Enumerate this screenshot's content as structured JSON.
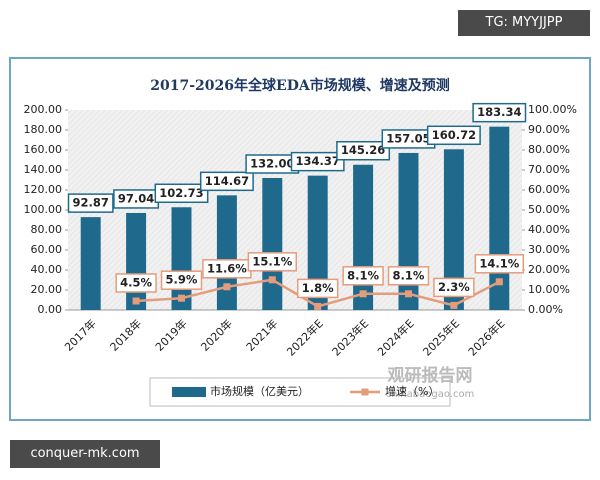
{
  "overlays": {
    "tag": "TG: MYYJJPP",
    "footer": "conquer-mk.com",
    "watermark_name": "观研报告网",
    "watermark_site": "chinabaogao.com"
  },
  "chart_data": {
    "type": "bar",
    "title": "2017-2026年全球EDA市场规模、增速及预测",
    "categories": [
      "2017年",
      "2018年",
      "2019年",
      "2020年",
      "2021年",
      "2022年E",
      "2023年E",
      "2024年E",
      "2025年E",
      "2026年E"
    ],
    "series": [
      {
        "name": "市场规模（亿美元）",
        "color": "#1f6a8c",
        "values": [
          92.87,
          97.04,
          102.73,
          114.67,
          132.0,
          134.37,
          145.26,
          157.05,
          160.72,
          183.34
        ],
        "value_labels": [
          "92.87",
          "97.04",
          "102.73",
          "114.67",
          "132.00",
          "134.37",
          "145.26",
          "157.05",
          "160.72",
          "183.34"
        ]
      },
      {
        "name": "增速（%）",
        "color": "#e59c7c",
        "type": "line",
        "axis": "y2",
        "values": [
          null,
          4.5,
          5.9,
          11.6,
          15.1,
          1.8,
          8.1,
          8.1,
          2.3,
          14.1
        ],
        "value_labels": [
          null,
          "4.5%",
          "5.9%",
          "11.6%",
          "15.1%",
          "1.8%",
          "8.1%",
          "8.1%",
          "2.3%",
          "14.1%"
        ]
      }
    ],
    "ylim": [
      0,
      200
    ],
    "yticks": [
      {
        "value": 0,
        "label": "0.00"
      },
      {
        "value": 20,
        "label": "20.00"
      },
      {
        "value": 40,
        "label": "40.00"
      },
      {
        "value": 60,
        "label": "60.00"
      },
      {
        "value": 80,
        "label": "80.00"
      },
      {
        "value": 100,
        "label": "100.00"
      },
      {
        "value": 120,
        "label": "120.00"
      },
      {
        "value": 140,
        "label": "140.00"
      },
      {
        "value": 160,
        "label": "160.00"
      },
      {
        "value": 180,
        "label": "180.00"
      },
      {
        "value": 200,
        "label": "200.00"
      }
    ],
    "y2lim": [
      0,
      100
    ],
    "y2ticks": [
      {
        "value": 0,
        "label": "0.00%"
      },
      {
        "value": 10,
        "label": "10.00%"
      },
      {
        "value": 20,
        "label": "20.00%"
      },
      {
        "value": 30,
        "label": "30.00%"
      },
      {
        "value": 40,
        "label": "40.00%"
      },
      {
        "value": 50,
        "label": "50.00%"
      },
      {
        "value": 60,
        "label": "60.00%"
      },
      {
        "value": 70,
        "label": "70.00%"
      },
      {
        "value": 80,
        "label": "80.00%"
      },
      {
        "value": 90,
        "label": "90.00%"
      },
      {
        "value": 100,
        "label": "100.00%"
      }
    ]
  }
}
